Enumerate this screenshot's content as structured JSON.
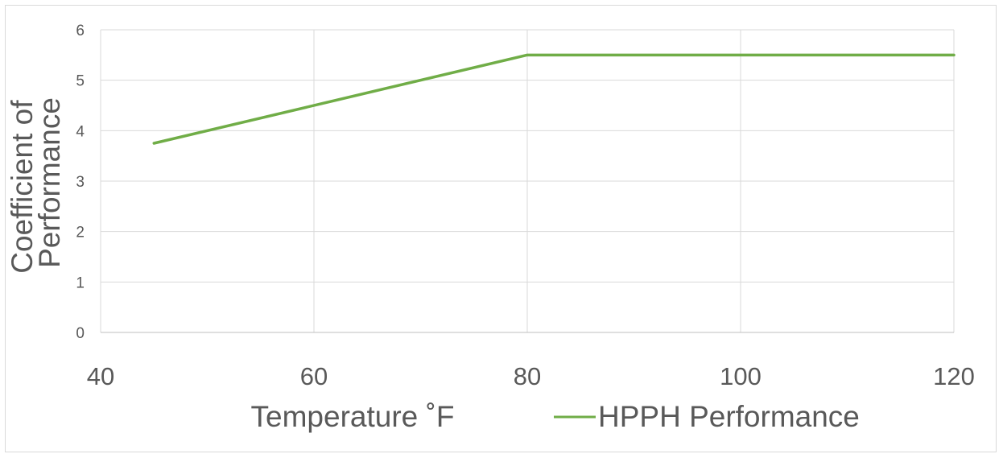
{
  "chart_data": {
    "type": "line",
    "xlabel": "Temperature ˚F",
    "ylabel_lines": [
      "Coefficient of",
      "Performance"
    ],
    "xlim": [
      40,
      120
    ],
    "ylim": [
      0,
      6
    ],
    "x_ticks": [
      40,
      60,
      80,
      100,
      120
    ],
    "y_ticks": [
      0,
      1,
      2,
      3,
      4,
      5,
      6
    ],
    "grid": true,
    "legend_position": "bottom",
    "series": [
      {
        "name": "HPPH Performance",
        "color": "#70ad47",
        "x": [
          45,
          80,
          120
        ],
        "y": [
          3.75,
          5.5,
          5.5
        ]
      }
    ]
  }
}
